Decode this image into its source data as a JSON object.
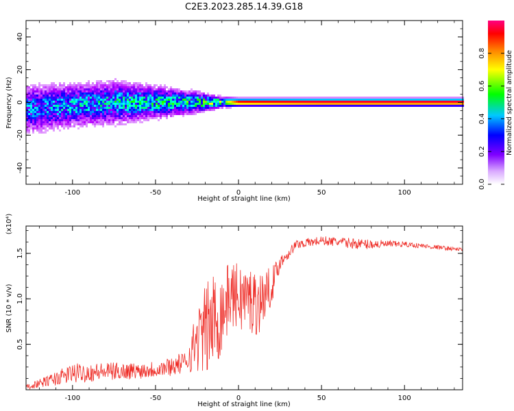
{
  "title": "C2E3.2023.285.14.39.G18",
  "chart_data": [
    {
      "type": "heatmap",
      "xlabel": "Height of straight line (km)",
      "ylabel": "Frequency (Hz)",
      "xlim": [
        -128,
        135
      ],
      "ylim": [
        -50,
        50
      ],
      "x_ticks": [
        -100,
        -50,
        0,
        50,
        100
      ],
      "x_tick_labels": [
        "-100",
        "-50",
        "0",
        "50",
        "100"
      ],
      "y_ticks": [
        -40,
        -20,
        0,
        20,
        40
      ],
      "y_tick_labels": [
        "-40",
        "-20",
        "0",
        "20",
        "40"
      ],
      "colorbar": {
        "label": "Normalized spectral amplitude",
        "range": [
          0,
          1
        ],
        "ticks": [
          0.0,
          0.2,
          0.4,
          0.6,
          0.8
        ],
        "tick_labels": [
          "0.0",
          "0.2",
          "0.4",
          "0.6",
          "0.8"
        ],
        "colors": [
          "#ffffff",
          "#b400ff",
          "#0000ff",
          "#00ffff",
          "#00ff00",
          "#ffff00",
          "#ff0000",
          "#ff0080"
        ]
      },
      "ridge": {
        "center_hz": [
          {
            "x": -125,
            "y": -4
          },
          {
            "x": -100,
            "y": -2
          },
          {
            "x": -75,
            "y": 0
          },
          {
            "x": -50,
            "y": 0
          },
          {
            "x": -25,
            "y": 0
          },
          {
            "x": 0,
            "y": 0
          },
          {
            "x": 25,
            "y": 0
          },
          {
            "x": 50,
            "y": 0
          },
          {
            "x": 100,
            "y": 0
          },
          {
            "x": 135,
            "y": 0
          }
        ],
        "spread_hz": [
          {
            "x": -125,
            "y": 9
          },
          {
            "x": -100,
            "y": 8
          },
          {
            "x": -75,
            "y": 8
          },
          {
            "x": -50,
            "y": 6
          },
          {
            "x": -25,
            "y": 4
          },
          {
            "x": -10,
            "y": 2
          },
          {
            "x": 0,
            "y": 1.5
          },
          {
            "x": 135,
            "y": 1.5
          }
        ],
        "peak_amplitude": [
          {
            "x": -125,
            "y": 0.35
          },
          {
            "x": -100,
            "y": 0.4
          },
          {
            "x": -60,
            "y": 0.45
          },
          {
            "x": -30,
            "y": 0.5
          },
          {
            "x": -10,
            "y": 0.6
          },
          {
            "x": 0,
            "y": 0.9
          },
          {
            "x": 50,
            "y": 0.95
          },
          {
            "x": 135,
            "y": 0.95
          }
        ]
      }
    },
    {
      "type": "line",
      "xlabel": "Height of straight line (km)",
      "ylabel": "SNR (10 * v/v)",
      "y_multiplier_label": "(x10⁴)",
      "xlim": [
        -128,
        135
      ],
      "ylim": [
        0,
        1.8
      ],
      "x_ticks": [
        -100,
        -50,
        0,
        50,
        100
      ],
      "x_tick_labels": [
        "-100",
        "-50",
        "0",
        "50",
        "100"
      ],
      "y_ticks": [
        0.5,
        1.0,
        1.5
      ],
      "y_tick_labels": [
        "0.5",
        "1.0",
        "1.5"
      ],
      "series": [
        {
          "color": "#ee2a24",
          "envelope": [
            {
              "x": -128,
              "mean": 0.03,
              "noise": 0.03
            },
            {
              "x": -118,
              "mean": 0.08,
              "noise": 0.05
            },
            {
              "x": -100,
              "mean": 0.18,
              "noise": 0.11
            },
            {
              "x": -80,
              "mean": 0.2,
              "noise": 0.1
            },
            {
              "x": -60,
              "mean": 0.21,
              "noise": 0.09
            },
            {
              "x": -45,
              "mean": 0.24,
              "noise": 0.1
            },
            {
              "x": -32,
              "mean": 0.3,
              "noise": 0.12
            },
            {
              "x": -25,
              "mean": 0.55,
              "noise": 0.35
            },
            {
              "x": -18,
              "mean": 0.7,
              "noise": 0.55
            },
            {
              "x": -10,
              "mean": 0.85,
              "noise": 0.5
            },
            {
              "x": -5,
              "mean": 1.05,
              "noise": 0.35
            },
            {
              "x": 5,
              "mean": 1.0,
              "noise": 0.4
            },
            {
              "x": 12,
              "mean": 0.95,
              "noise": 0.35
            },
            {
              "x": 20,
              "mean": 1.15,
              "noise": 0.2
            },
            {
              "x": 25,
              "mean": 1.4,
              "noise": 0.08
            },
            {
              "x": 35,
              "mean": 1.6,
              "noise": 0.05
            },
            {
              "x": 50,
              "mean": 1.64,
              "noise": 0.05
            },
            {
              "x": 75,
              "mean": 1.6,
              "noise": 0.06
            },
            {
              "x": 100,
              "mean": 1.6,
              "noise": 0.03
            },
            {
              "x": 135,
              "mean": 1.54,
              "noise": 0.02
            }
          ]
        }
      ]
    }
  ]
}
